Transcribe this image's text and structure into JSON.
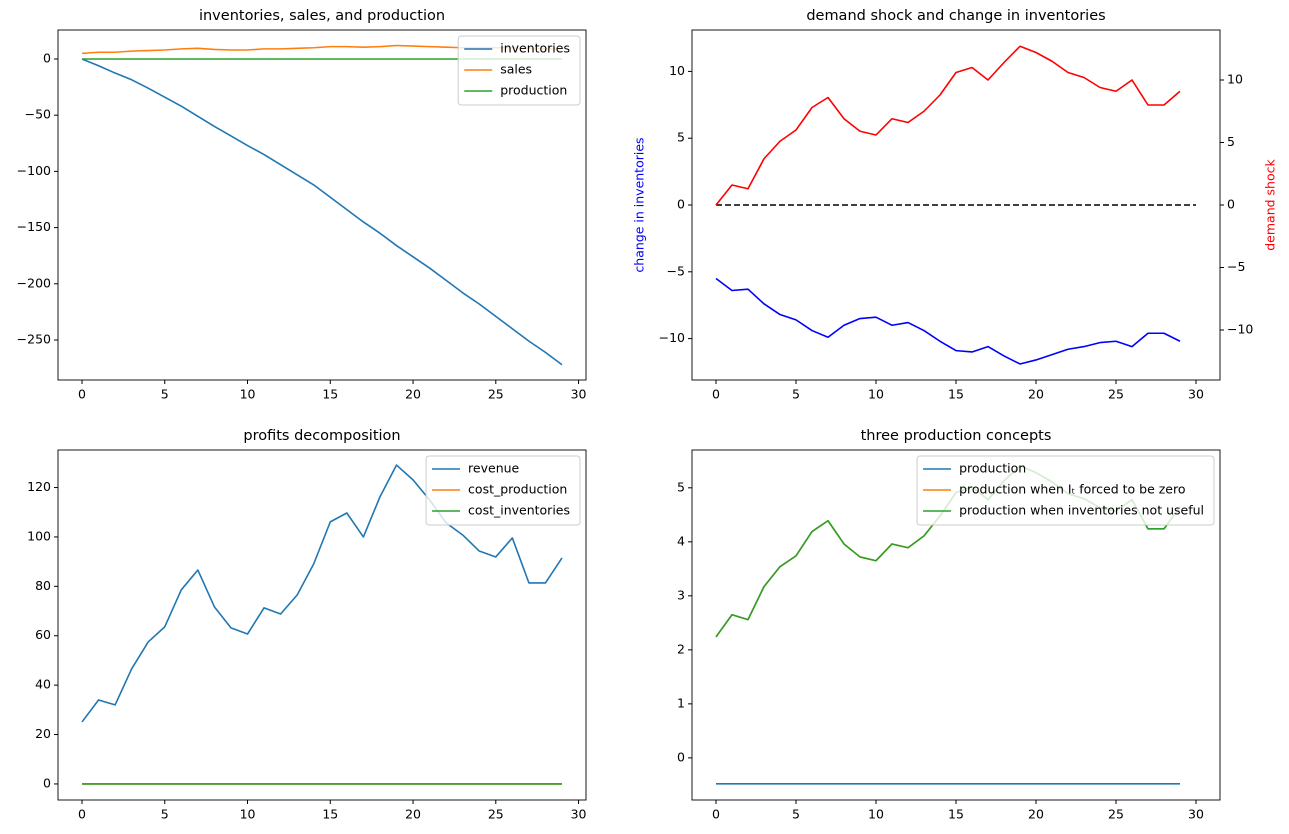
{
  "chart_data": [
    {
      "type": "line",
      "title": "inventories, sales, and production",
      "x": [
        0,
        1,
        2,
        3,
        4,
        5,
        6,
        7,
        8,
        9,
        10,
        11,
        12,
        13,
        14,
        15,
        16,
        17,
        18,
        19,
        20,
        21,
        22,
        23,
        24,
        25,
        26,
        27,
        28,
        29
      ],
      "xlim": [
        -1.45,
        30.45
      ],
      "xticks": [
        0,
        5,
        10,
        15,
        20,
        25,
        30
      ],
      "ylim": [
        -285.6,
        25.8
      ],
      "yticks": [
        {
          "value": -250,
          "label": "−250"
        },
        {
          "value": -200,
          "label": "−200"
        },
        {
          "value": -150,
          "label": "−150"
        },
        {
          "value": -100,
          "label": "−100"
        },
        {
          "value": -50,
          "label": "−50"
        },
        0
      ],
      "legend": "upper right",
      "series": [
        {
          "name": "inventories",
          "color": "#1f77b4",
          "values": [
            0,
            -6,
            -12.5,
            -18.5,
            -26,
            -34,
            -42,
            -51,
            -60,
            -68.5,
            -77,
            -85,
            -94,
            -103,
            -112,
            -123,
            -134,
            -145,
            -155,
            -166,
            -176,
            -186,
            -197,
            -208,
            -218,
            -229,
            -240,
            -251,
            -261,
            -272
          ]
        },
        {
          "name": "sales",
          "color": "#ff7f0e",
          "values": [
            5,
            6,
            6,
            7,
            7.5,
            8,
            9,
            9.5,
            8.5,
            8,
            8,
            9,
            9,
            9.5,
            10,
            11,
            11,
            10.5,
            11,
            12,
            11.5,
            11,
            10.5,
            10,
            10,
            10,
            10,
            9.5,
            9,
            9
          ]
        },
        {
          "name": "production",
          "color": "#2ca02c",
          "values": [
            0,
            0,
            0,
            0,
            0,
            0,
            0,
            0,
            0,
            0,
            0,
            0,
            0,
            0,
            0,
            0,
            0,
            0,
            0,
            0,
            0,
            0,
            0,
            0,
            0,
            0,
            0,
            0,
            0,
            0
          ]
        }
      ]
    },
    {
      "type": "line",
      "title": "demand shock and change in inventories",
      "x": [
        0,
        1,
        2,
        3,
        4,
        5,
        6,
        7,
        8,
        9,
        10,
        11,
        12,
        13,
        14,
        15,
        16,
        17,
        18,
        19,
        20,
        21,
        22,
        23,
        24,
        25,
        26,
        27,
        28,
        29
      ],
      "xlim": [
        -1.5,
        31.5
      ],
      "xticks": [
        0,
        5,
        10,
        15,
        20,
        25,
        30
      ],
      "ylim": [
        -13.1,
        13.1
      ],
      "yticks": [
        {
          "value": -10,
          "label": "−10"
        },
        {
          "value": -5,
          "label": "−5"
        },
        0,
        5,
        10
      ],
      "y2lim": [
        -14.0,
        14.0
      ],
      "y2ticks": [
        {
          "value": -10,
          "label": "−10"
        },
        {
          "value": -5,
          "label": "−5"
        },
        0,
        5,
        10
      ],
      "ylabel": "change in inventories",
      "ylabel_color": "blue",
      "y2label": "demand shock",
      "y2label_color": "red",
      "series": [
        {
          "color": "blue",
          "values": [
            -5.5,
            -6.4,
            -6.3,
            -7.4,
            -8.2,
            -8.6,
            -9.4,
            -9.9,
            -9.0,
            -8.5,
            -8.4,
            -9.0,
            -8.8,
            -9.4,
            -10.2,
            -10.9,
            -11.0,
            -10.6,
            -11.3,
            -11.9,
            -11.6,
            -11.2,
            -10.8,
            -10.6,
            -10.3,
            -10.2,
            -10.6,
            -9.6,
            -9.6,
            -10.2
          ]
        },
        {
          "color": "black",
          "linestyle": "dashed",
          "x": [
            0,
            30
          ],
          "values": [
            0,
            0
          ]
        },
        {
          "color": "red",
          "axis": "y2",
          "values": [
            0,
            1.6,
            1.3,
            3.7,
            5.1,
            6.0,
            7.8,
            8.6,
            6.9,
            5.9,
            5.6,
            6.9,
            6.6,
            7.5,
            8.8,
            10.6,
            11.0,
            10.0,
            11.4,
            12.7,
            12.2,
            11.5,
            10.6,
            10.2,
            9.4,
            9.1,
            10.0,
            8.0,
            8.0,
            9.1
          ]
        }
      ]
    },
    {
      "type": "line",
      "title": "profits decomposition",
      "x": [
        0,
        1,
        2,
        3,
        4,
        5,
        6,
        7,
        8,
        9,
        10,
        11,
        12,
        13,
        14,
        15,
        16,
        17,
        18,
        19,
        20,
        21,
        22,
        23,
        24,
        25,
        26,
        27,
        28,
        29
      ],
      "xlim": [
        -1.45,
        30.45
      ],
      "xticks": [
        0,
        5,
        10,
        15,
        20,
        25,
        30
      ],
      "ylim": [
        -6.5,
        135.2
      ],
      "yticks": [
        0,
        20,
        40,
        60,
        80,
        100,
        120
      ],
      "legend": "upper right",
      "series": [
        {
          "name": "revenue",
          "color": "#1f77b4",
          "values": [
            25.1,
            34.0,
            32.0,
            46.6,
            57.5,
            63.6,
            78.6,
            86.6,
            71.7,
            63.2,
            60.7,
            71.3,
            68.8,
            76.5,
            89.1,
            106.1,
            109.7,
            100.0,
            116.2,
            129.1,
            123.1,
            115.0,
            105.7,
            100.8,
            94.3,
            91.9,
            99.6,
            81.4,
            81.4,
            91.5
          ]
        },
        {
          "name": "cost_production",
          "color": "#ff7f0e",
          "values": [
            0,
            0,
            0,
            0,
            0,
            0,
            0,
            0,
            0,
            0,
            0,
            0,
            0,
            0,
            0,
            0,
            0,
            0,
            0,
            0,
            0,
            0,
            0,
            0,
            0,
            0,
            0,
            0,
            0,
            0
          ]
        },
        {
          "name": "cost_inventories",
          "color": "#2ca02c",
          "values": [
            0,
            0,
            0,
            0,
            0,
            0,
            0,
            0,
            0,
            0,
            0,
            0,
            0,
            0,
            0,
            0,
            0,
            0,
            0,
            0,
            0,
            0,
            0,
            0,
            0,
            0,
            0,
            0,
            0,
            0
          ]
        }
      ]
    },
    {
      "type": "line",
      "title": "three production concepts",
      "x": [
        0,
        1,
        2,
        3,
        4,
        5,
        6,
        7,
        8,
        9,
        10,
        11,
        12,
        13,
        14,
        15,
        16,
        17,
        18,
        19,
        20,
        21,
        22,
        23,
        24,
        25,
        26,
        27,
        28,
        29
      ],
      "xlim": [
        -1.5,
        31.5
      ],
      "xticks": [
        0,
        5,
        10,
        15,
        20,
        25,
        30
      ],
      "ylim": [
        -0.78,
        5.7
      ],
      "yticks": [
        0,
        1,
        2,
        3,
        4,
        5
      ],
      "legend": "upper right",
      "series": [
        {
          "name": "production",
          "color": "#1f77b4",
          "values": [
            -0.48,
            -0.48,
            -0.48,
            -0.48,
            -0.48,
            -0.48,
            -0.48,
            -0.48,
            -0.48,
            -0.48,
            -0.48,
            -0.48,
            -0.48,
            -0.48,
            -0.48,
            -0.48,
            -0.48,
            -0.48,
            -0.48,
            -0.48,
            -0.48,
            -0.48,
            -0.48,
            -0.48,
            -0.48,
            -0.48,
            -0.48,
            -0.48,
            -0.48,
            -0.48
          ]
        },
        {
          "name": "production when Iₜ forced to be zero",
          "color": "#ff7f0e",
          "values": [
            2.24,
            2.65,
            2.56,
            3.17,
            3.54,
            3.74,
            4.19,
            4.39,
            3.96,
            3.72,
            3.65,
            3.96,
            3.89,
            4.11,
            4.48,
            4.91,
            5.02,
            4.78,
            5.13,
            5.41,
            5.28,
            5.11,
            4.89,
            4.8,
            4.63,
            4.57,
            4.78,
            4.24,
            4.24,
            4.65
          ]
        },
        {
          "name": "production when inventories not useful",
          "color": "#2ca02c",
          "values": [
            2.24,
            2.65,
            2.56,
            3.17,
            3.54,
            3.74,
            4.19,
            4.39,
            3.96,
            3.72,
            3.65,
            3.96,
            3.89,
            4.11,
            4.48,
            4.91,
            5.02,
            4.78,
            5.13,
            5.41,
            5.28,
            5.11,
            4.89,
            4.8,
            4.63,
            4.57,
            4.78,
            4.24,
            4.24,
            4.65
          ]
        }
      ]
    }
  ]
}
